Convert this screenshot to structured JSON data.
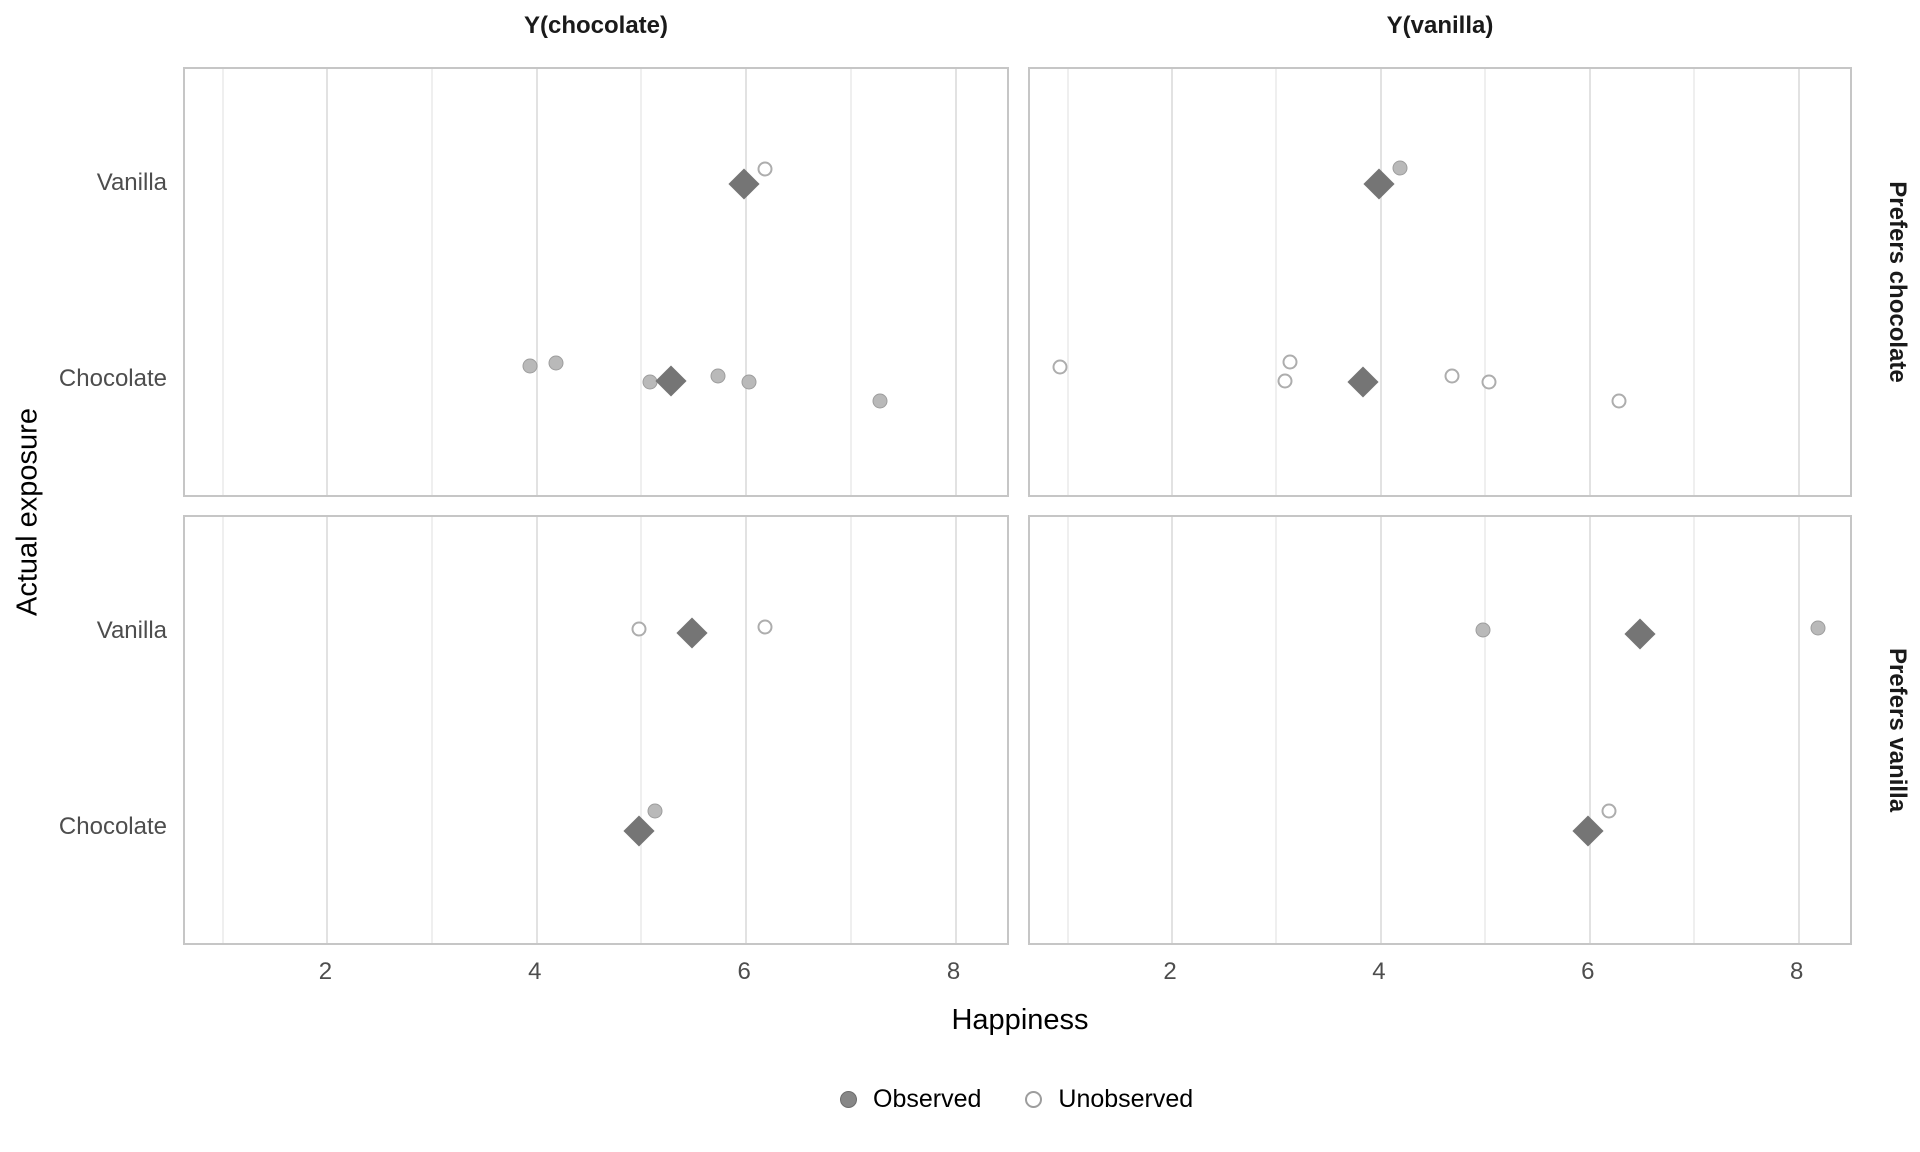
{
  "chart_data": {
    "type": "scatter",
    "description": "Faceted dot plot of potential outcomes: observed and unobserved happiness under chocolate/vanilla exposure, faceted by outcome column and preference group, with group mean diamonds.",
    "column_titles": [
      "Y(chocolate)",
      "Y(vanilla)"
    ],
    "row_strip_titles": [
      "Prefers chocolate",
      "Prefers vanilla"
    ],
    "xlabel": "Happiness",
    "ylabel": "Actual exposure",
    "y_categories": [
      "Vanilla",
      "Chocolate"
    ],
    "x_ticks": [
      2,
      4,
      6,
      8
    ],
    "x_gridlines_minor": [
      1,
      3,
      5,
      7
    ],
    "x_gridlines_major": [
      2,
      4,
      6,
      8
    ],
    "x_domain": [
      0.64,
      8.53
    ],
    "legend": {
      "items": [
        {
          "label": "Observed",
          "marker": "filled-circle"
        },
        {
          "label": "Unobserved",
          "marker": "open-circle"
        }
      ]
    },
    "facets": [
      {
        "col": 0,
        "row": 0,
        "column_title": "Y(chocolate)",
        "strip": "Prefers chocolate",
        "points": [
          {
            "exposure": "Vanilla",
            "x": 6.2,
            "dy": -15,
            "status": "unobserved"
          },
          {
            "exposure": "Chocolate",
            "x": 3.95,
            "dy": -14,
            "status": "observed"
          },
          {
            "exposure": "Chocolate",
            "x": 4.2,
            "dy": -17,
            "status": "observed"
          },
          {
            "exposure": "Chocolate",
            "x": 5.1,
            "dy": 2,
            "status": "observed"
          },
          {
            "exposure": "Chocolate",
            "x": 5.75,
            "dy": -4,
            "status": "observed"
          },
          {
            "exposure": "Chocolate",
            "x": 6.05,
            "dy": 2,
            "status": "observed"
          },
          {
            "exposure": "Chocolate",
            "x": 7.3,
            "dy": 21,
            "status": "observed"
          }
        ],
        "means": [
          {
            "exposure": "Vanilla",
            "x": 6.0,
            "dy": 0
          },
          {
            "exposure": "Chocolate",
            "x": 5.3,
            "dy": 1
          }
        ]
      },
      {
        "col": 1,
        "row": 0,
        "column_title": "Y(vanilla)",
        "strip": "Prefers chocolate",
        "points": [
          {
            "exposure": "Vanilla",
            "x": 4.2,
            "dy": -16,
            "status": "observed"
          },
          {
            "exposure": "Chocolate",
            "x": 0.95,
            "dy": -13,
            "status": "unobserved"
          },
          {
            "exposure": "Chocolate",
            "x": 3.15,
            "dy": -18,
            "status": "unobserved"
          },
          {
            "exposure": "Chocolate",
            "x": 3.1,
            "dy": 1,
            "status": "unobserved"
          },
          {
            "exposure": "Chocolate",
            "x": 4.7,
            "dy": -4,
            "status": "unobserved"
          },
          {
            "exposure": "Chocolate",
            "x": 5.05,
            "dy": 2,
            "status": "unobserved"
          },
          {
            "exposure": "Chocolate",
            "x": 6.3,
            "dy": 21,
            "status": "unobserved"
          }
        ],
        "means": [
          {
            "exposure": "Vanilla",
            "x": 4.0,
            "dy": 0
          },
          {
            "exposure": "Chocolate",
            "x": 3.85,
            "dy": 2
          }
        ]
      },
      {
        "col": 0,
        "row": 1,
        "column_title": "Y(chocolate)",
        "strip": "Prefers vanilla",
        "points": [
          {
            "exposure": "Vanilla",
            "x": 5.0,
            "dy": -3,
            "status": "unobserved"
          },
          {
            "exposure": "Vanilla",
            "x": 6.2,
            "dy": -5,
            "status": "unobserved"
          },
          {
            "exposure": "Chocolate",
            "x": 5.15,
            "dy": -17,
            "status": "observed"
          }
        ],
        "means": [
          {
            "exposure": "Vanilla",
            "x": 5.5,
            "dy": 1
          },
          {
            "exposure": "Chocolate",
            "x": 5.0,
            "dy": 3
          }
        ]
      },
      {
        "col": 1,
        "row": 1,
        "column_title": "Y(vanilla)",
        "strip": "Prefers vanilla",
        "points": [
          {
            "exposure": "Vanilla",
            "x": 5.0,
            "dy": -2,
            "status": "observed"
          },
          {
            "exposure": "Vanilla",
            "x": 8.2,
            "dy": -4,
            "status": "observed"
          },
          {
            "exposure": "Chocolate",
            "x": 6.2,
            "dy": -17,
            "status": "unobserved"
          }
        ],
        "means": [
          {
            "exposure": "Vanilla",
            "x": 6.5,
            "dy": 2
          },
          {
            "exposure": "Chocolate",
            "x": 6.0,
            "dy": 3
          }
        ]
      }
    ]
  },
  "colors": {
    "observed_fill": "#b9b9b9",
    "observed_stroke": "#9d9d9d",
    "unobserved_stroke": "#adadad",
    "mean_diamond": "#757575",
    "gridline_major": "#e2e2e2",
    "gridline_minor": "#efefef",
    "panel_border": "#c6c6c6",
    "tick_text": "#4d4d4d",
    "title_text": "#000000"
  }
}
